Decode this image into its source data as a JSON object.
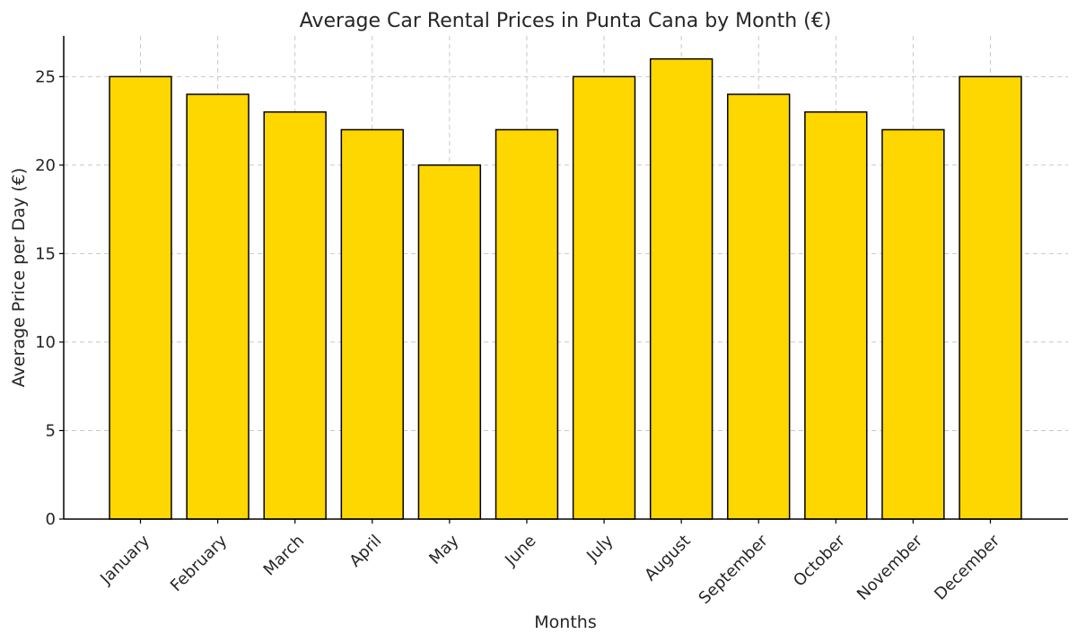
{
  "chart_data": {
    "type": "bar",
    "title": "Average Car Rental Prices in Punta Cana by Month (€)",
    "xlabel": "Months",
    "ylabel": "Average Price per Day (€)",
    "categories": [
      "January",
      "February",
      "March",
      "April",
      "May",
      "June",
      "July",
      "August",
      "September",
      "October",
      "November",
      "December"
    ],
    "values": [
      25,
      24,
      23,
      22,
      20,
      22,
      25,
      26,
      24,
      23,
      22,
      25
    ],
    "ylim": [
      0,
      27.3
    ],
    "yticks": [
      0,
      5,
      10,
      15,
      20,
      25
    ],
    "grid": true,
    "bar_color": "#FFD700",
    "edge_color": "#000000"
  }
}
